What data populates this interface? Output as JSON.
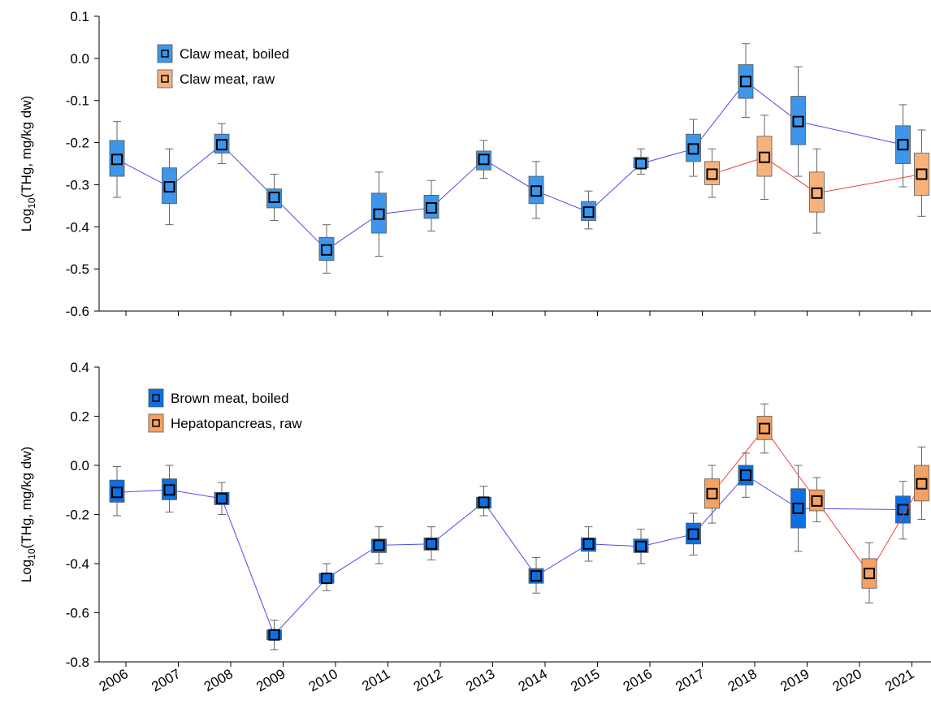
{
  "chart_data": [
    {
      "type": "box",
      "ylabel": {
        "base": "Log",
        "sub": "10",
        "rest": "(THg, mg/kg dw)"
      },
      "ylim": [
        -0.6,
        0.1
      ],
      "yticks": [
        0.1,
        {
          "value": 0,
          "label": "0.0"
        },
        -0.1,
        -0.2,
        -0.3,
        -0.4,
        -0.5,
        -0.6
      ],
      "legend": "upper left",
      "series": [
        {
          "name": "Claw meat, boiled",
          "color": "#3d96ea",
          "line_color": "#4a4af0",
          "categories": [
            "2006",
            "2007",
            "2008",
            "2009",
            "2010",
            "2011",
            "2012",
            "2013",
            "2014",
            "2015",
            "2016",
            "2017",
            "2018",
            "2019",
            "2021"
          ],
          "values": [
            -0.24,
            -0.305,
            -0.205,
            -0.33,
            -0.455,
            -0.37,
            -0.355,
            -0.24,
            -0.315,
            -0.365,
            -0.25,
            -0.215,
            -0.055,
            -0.15,
            -0.205
          ],
          "q3": [
            -0.195,
            -0.26,
            -0.18,
            -0.31,
            -0.425,
            -0.32,
            -0.325,
            -0.22,
            -0.28,
            -0.34,
            -0.235,
            -0.18,
            -0.015,
            -0.09,
            -0.16
          ],
          "q1": [
            -0.28,
            -0.345,
            -0.225,
            -0.355,
            -0.48,
            -0.415,
            -0.38,
            -0.265,
            -0.345,
            -0.385,
            -0.26,
            -0.245,
            -0.095,
            -0.205,
            -0.25
          ],
          "max": [
            -0.15,
            -0.215,
            -0.155,
            -0.275,
            -0.395,
            -0.27,
            -0.29,
            -0.195,
            -0.245,
            -0.315,
            -0.215,
            -0.145,
            0.035,
            -0.02,
            -0.11
          ],
          "min": [
            -0.33,
            -0.395,
            -0.25,
            -0.385,
            -0.51,
            -0.47,
            -0.41,
            -0.285,
            -0.38,
            -0.405,
            -0.275,
            -0.28,
            -0.14,
            -0.28,
            -0.305
          ]
        },
        {
          "name": "Claw meat, raw",
          "color": "#f7b27c",
          "line_color": "#ee4040",
          "categories": [
            "2017",
            "2018",
            "2019",
            "2021"
          ],
          "values": [
            -0.275,
            -0.235,
            -0.32,
            -0.275
          ],
          "q3": [
            -0.245,
            -0.185,
            -0.27,
            -0.225
          ],
          "q1": [
            -0.3,
            -0.28,
            -0.365,
            -0.325
          ],
          "max": [
            -0.215,
            -0.135,
            -0.215,
            -0.17
          ],
          "min": [
            -0.33,
            -0.335,
            -0.415,
            -0.375
          ]
        }
      ]
    },
    {
      "type": "box",
      "ylabel": {
        "base": "Log",
        "sub": "10",
        "rest": "(THg, mg/kg dw)"
      },
      "categories": [
        "2006",
        "2007",
        "2008",
        "2009",
        "2010",
        "2011",
        "2012",
        "2013",
        "2014",
        "2015",
        "2016",
        "2017",
        "2018",
        "2019",
        "2020",
        "2021"
      ],
      "ylim": [
        -0.8,
        0.4
      ],
      "yticks": [
        0.4,
        0.2,
        {
          "value": 0,
          "label": "0.0"
        },
        -0.2,
        -0.4,
        -0.6,
        -0.8
      ],
      "legend": "upper left",
      "series": [
        {
          "name": "Brown meat, boiled",
          "color": "#0c70e2",
          "line_color": "#4a4af0",
          "categories": [
            "2006",
            "2007",
            "2008",
            "2009",
            "2010",
            "2011",
            "2012",
            "2013",
            "2014",
            "2015",
            "2016",
            "2017",
            "2018",
            "2019",
            "2021"
          ],
          "values": [
            -0.11,
            -0.1,
            -0.135,
            -0.69,
            -0.46,
            -0.325,
            -0.32,
            -0.15,
            -0.45,
            -0.32,
            -0.33,
            -0.28,
            -0.04,
            -0.175,
            -0.18
          ],
          "q3": [
            -0.06,
            -0.055,
            -0.11,
            -0.67,
            -0.44,
            -0.3,
            -0.295,
            -0.13,
            -0.42,
            -0.295,
            -0.3,
            -0.235,
            0,
            -0.095,
            -0.125
          ],
          "q1": [
            -0.15,
            -0.14,
            -0.16,
            -0.71,
            -0.48,
            -0.355,
            -0.345,
            -0.175,
            -0.48,
            -0.35,
            -0.355,
            -0.32,
            -0.08,
            -0.255,
            -0.235
          ],
          "max": [
            -0.005,
            0,
            -0.07,
            -0.63,
            -0.4,
            -0.25,
            -0.25,
            -0.085,
            -0.375,
            -0.25,
            -0.26,
            -0.195,
            0.05,
            0,
            -0.065
          ],
          "min": [
            -0.205,
            -0.19,
            -0.2,
            -0.75,
            -0.51,
            -0.4,
            -0.385,
            -0.205,
            -0.52,
            -0.39,
            -0.4,
            -0.365,
            -0.13,
            -0.35,
            -0.3
          ]
        },
        {
          "name": "Hepatopancreas, raw",
          "color": "#f3a263",
          "line_color": "#ee4040",
          "categories": [
            "2017",
            "2018",
            "2019",
            "2020",
            "2021"
          ],
          "values": [
            -0.115,
            0.15,
            -0.145,
            -0.44,
            -0.075
          ],
          "q3": [
            -0.055,
            0.2,
            -0.1,
            -0.38,
            0
          ],
          "q1": [
            -0.175,
            0.105,
            -0.185,
            -0.5,
            -0.145
          ],
          "max": [
            0,
            0.25,
            -0.05,
            -0.315,
            0.075
          ],
          "min": [
            -0.235,
            0.05,
            -0.23,
            -0.56,
            -0.22
          ]
        }
      ]
    }
  ]
}
